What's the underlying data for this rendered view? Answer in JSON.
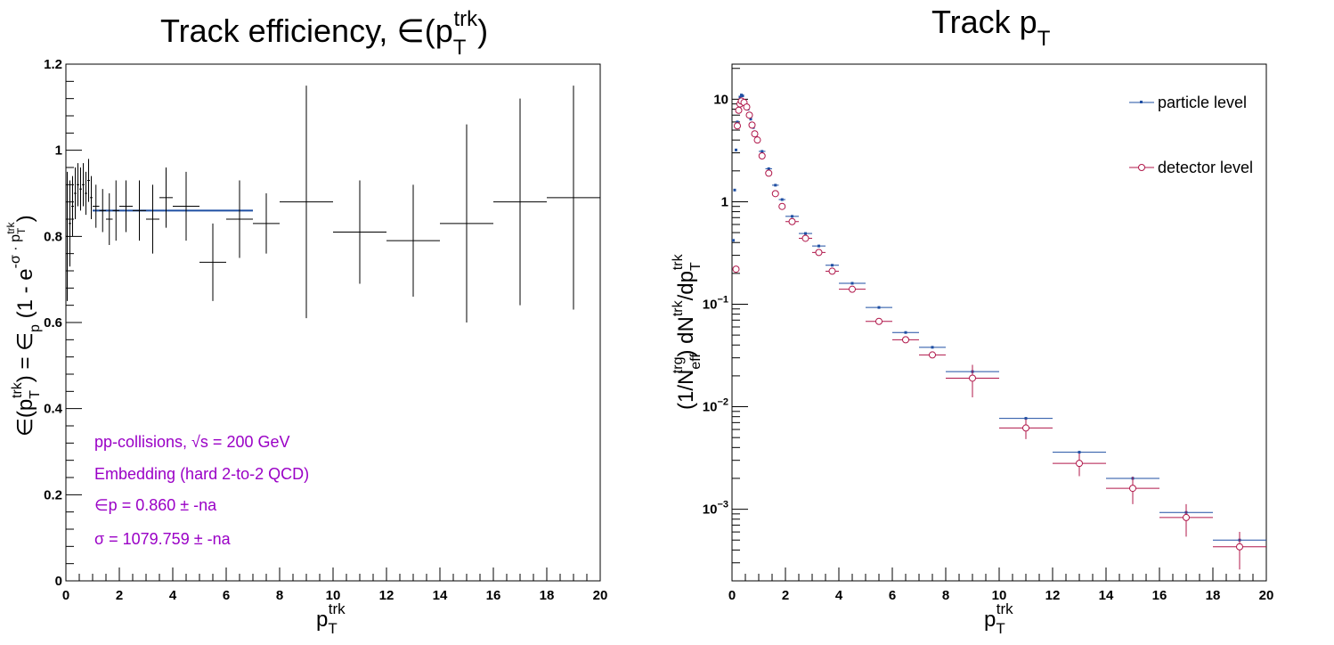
{
  "left_panel": {
    "title": "Track efficiency, ∈(p",
    "title_sub": "T",
    "title_sup": "trk",
    "title_close": ")",
    "xlabel_main": "p",
    "xlabel_sub": "T",
    "xlabel_sup": "trk",
    "ylabel": "∈(pTtrk) = ∈p (1 - e^(-σ · pTtrk))",
    "annotations": [
      "pp-collisions, √s = 200 GeV",
      "Embedding (hard 2-to-2 QCD)",
      "∈p = 0.860 ± -na",
      "σ = 1079.759 ± -na"
    ]
  },
  "right_panel": {
    "title": "Track p",
    "title_sub": "T",
    "xlabel_main": "p",
    "xlabel_sub": "T",
    "xlabel_sup": "trk",
    "ylabel": "(1/Nefftrg) dNtrk/dpTtrk",
    "legend": [
      "particle level",
      "detector level"
    ]
  },
  "colors": {
    "axis": "#000000",
    "efficiency_points": "#000000",
    "fit_line": "#1f4fa3",
    "annotation": "#9a00c6",
    "particle_level": "#1f4fa3",
    "detector_level": "#b0174a"
  },
  "chart_data": [
    {
      "type": "scatter",
      "title": "Track efficiency, ∈(pTtrk)",
      "xlabel": "pTtrk",
      "ylabel": "∈(pTtrk) = ∈p (1 - e^(-σ · pTtrk))",
      "xlim": [
        0,
        20
      ],
      "ylim": [
        0,
        1.2
      ],
      "xticks": [
        0,
        2,
        4,
        6,
        8,
        10,
        12,
        14,
        16,
        18,
        20
      ],
      "yticks": [
        0,
        0.2,
        0.4,
        0.6,
        0.8,
        1,
        1.2
      ],
      "grid": false,
      "series": [
        {
          "points": [
            {
              "x": 0.05,
              "y": 0.8,
              "xerr": 0.05,
              "yerr": 0.15
            },
            {
              "x": 0.15,
              "y": 0.83,
              "xerr": 0.05,
              "yerr": 0.1
            },
            {
              "x": 0.25,
              "y": 0.87,
              "xerr": 0.05,
              "yerr": 0.07
            },
            {
              "x": 0.35,
              "y": 0.9,
              "xerr": 0.05,
              "yerr": 0.06
            },
            {
              "x": 0.45,
              "y": 0.92,
              "xerr": 0.05,
              "yerr": 0.05
            },
            {
              "x": 0.55,
              "y": 0.91,
              "xerr": 0.05,
              "yerr": 0.05
            },
            {
              "x": 0.65,
              "y": 0.92,
              "xerr": 0.05,
              "yerr": 0.05
            },
            {
              "x": 0.75,
              "y": 0.9,
              "xerr": 0.05,
              "yerr": 0.05
            },
            {
              "x": 0.85,
              "y": 0.93,
              "xerr": 0.05,
              "yerr": 0.05
            },
            {
              "x": 0.95,
              "y": 0.89,
              "xerr": 0.05,
              "yerr": 0.05
            },
            {
              "x": 1.125,
              "y": 0.87,
              "xerr": 0.125,
              "yerr": 0.05
            },
            {
              "x": 1.375,
              "y": 0.86,
              "xerr": 0.125,
              "yerr": 0.05
            },
            {
              "x": 1.625,
              "y": 0.84,
              "xerr": 0.125,
              "yerr": 0.06
            },
            {
              "x": 1.875,
              "y": 0.86,
              "xerr": 0.125,
              "yerr": 0.07
            },
            {
              "x": 2.25,
              "y": 0.87,
              "xerr": 0.25,
              "yerr": 0.06
            },
            {
              "x": 2.75,
              "y": 0.86,
              "xerr": 0.25,
              "yerr": 0.07
            },
            {
              "x": 3.25,
              "y": 0.84,
              "xerr": 0.25,
              "yerr": 0.08
            },
            {
              "x": 3.75,
              "y": 0.89,
              "xerr": 0.25,
              "yerr": 0.07
            },
            {
              "x": 4.5,
              "y": 0.87,
              "xerr": 0.5,
              "yerr": 0.08
            },
            {
              "x": 5.5,
              "y": 0.74,
              "xerr": 0.5,
              "yerr": 0.09
            },
            {
              "x": 6.5,
              "y": 0.84,
              "xerr": 0.5,
              "yerr": 0.09
            },
            {
              "x": 7.5,
              "y": 0.83,
              "xerr": 0.5,
              "yerr": 0.07
            },
            {
              "x": 9.0,
              "y": 0.88,
              "xerr": 1.0,
              "yerr": 0.27
            },
            {
              "x": 11.0,
              "y": 0.81,
              "xerr": 1.0,
              "yerr": 0.12
            },
            {
              "x": 13.0,
              "y": 0.79,
              "xerr": 1.0,
              "yerr": 0.13
            },
            {
              "x": 15.0,
              "y": 0.83,
              "xerr": 1.0,
              "yerr": 0.23
            },
            {
              "x": 17.0,
              "y": 0.88,
              "xerr": 1.0,
              "yerr": 0.24
            },
            {
              "x": 19.0,
              "y": 0.89,
              "xerr": 1.0,
              "yerr": 0.26
            }
          ]
        }
      ],
      "fit": {
        "x_range": [
          1,
          7
        ],
        "y": 0.86
      }
    },
    {
      "type": "scatter",
      "title": "Track pT",
      "xlabel": "pTtrk",
      "ylabel": "(1/Nefftrg) dNtrk/dpTtrk",
      "xlim": [
        0,
        20
      ],
      "ylim": [
        0.0002,
        22
      ],
      "yscale": "log",
      "xticks": [
        0,
        2,
        4,
        6,
        8,
        10,
        12,
        14,
        16,
        18,
        20
      ],
      "yticks": [
        0.001,
        0.01,
        0.1,
        1,
        10
      ],
      "ytick_labels": [
        "10^-3",
        "10^-2",
        "10^-1",
        "1",
        "10"
      ],
      "grid": false,
      "legend_position": "top-right",
      "series": [
        {
          "name": "particle level",
          "marker": "dot",
          "points": [
            {
              "x": 0.05,
              "y": 0.42,
              "xerr": 0.05
            },
            {
              "x": 0.1,
              "y": 1.3,
              "xerr": 0.05
            },
            {
              "x": 0.15,
              "y": 3.2,
              "xerr": 0.05
            },
            {
              "x": 0.2,
              "y": 6.0,
              "xerr": 0.05
            },
            {
              "x": 0.25,
              "y": 9.0,
              "xerr": 0.05
            },
            {
              "x": 0.3,
              "y": 10.5,
              "xerr": 0.05
            },
            {
              "x": 0.35,
              "y": 11.0,
              "xerr": 0.05
            },
            {
              "x": 0.4,
              "y": 10.8,
              "xerr": 0.05
            },
            {
              "x": 0.5,
              "y": 9.6,
              "xerr": 0.05
            },
            {
              "x": 0.6,
              "y": 8.0,
              "xerr": 0.05
            },
            {
              "x": 0.7,
              "y": 6.4,
              "xerr": 0.05
            },
            {
              "x": 0.8,
              "y": 5.3,
              "xerr": 0.05
            },
            {
              "x": 0.9,
              "y": 4.4,
              "xerr": 0.05
            },
            {
              "x": 1.125,
              "y": 3.1,
              "xerr": 0.125
            },
            {
              "x": 1.375,
              "y": 2.1,
              "xerr": 0.125
            },
            {
              "x": 1.625,
              "y": 1.45,
              "xerr": 0.125
            },
            {
              "x": 1.875,
              "y": 1.05,
              "xerr": 0.125
            },
            {
              "x": 2.25,
              "y": 0.72,
              "xerr": 0.25
            },
            {
              "x": 2.75,
              "y": 0.49,
              "xerr": 0.25
            },
            {
              "x": 3.25,
              "y": 0.37,
              "xerr": 0.25
            },
            {
              "x": 3.75,
              "y": 0.24,
              "xerr": 0.25
            },
            {
              "x": 4.5,
              "y": 0.16,
              "xerr": 0.5
            },
            {
              "x": 5.5,
              "y": 0.093,
              "xerr": 0.5
            },
            {
              "x": 6.5,
              "y": 0.053,
              "xerr": 0.5
            },
            {
              "x": 7.5,
              "y": 0.038,
              "xerr": 0.5
            },
            {
              "x": 9.0,
              "y": 0.022,
              "xerr": 1.0
            },
            {
              "x": 11.0,
              "y": 0.0077,
              "xerr": 1.0
            },
            {
              "x": 13.0,
              "y": 0.0036,
              "xerr": 1.0
            },
            {
              "x": 15.0,
              "y": 0.002,
              "xerr": 1.0
            },
            {
              "x": 17.0,
              "y": 0.00093,
              "xerr": 1.0
            },
            {
              "x": 19.0,
              "y": 0.0005,
              "xerr": 1.0
            }
          ]
        },
        {
          "name": "detector level",
          "marker": "open-circle",
          "points": [
            {
              "x": 0.15,
              "y": 0.22,
              "xerr": 0.05
            },
            {
              "x": 0.2,
              "y": 5.5,
              "xerr": 0.05
            },
            {
              "x": 0.25,
              "y": 7.8,
              "xerr": 0.05
            },
            {
              "x": 0.3,
              "y": 9.0,
              "xerr": 0.05
            },
            {
              "x": 0.35,
              "y": 9.6,
              "xerr": 0.05
            },
            {
              "x": 0.45,
              "y": 9.3,
              "xerr": 0.05
            },
            {
              "x": 0.55,
              "y": 8.4,
              "xerr": 0.05
            },
            {
              "x": 0.65,
              "y": 7.0,
              "xerr": 0.05
            },
            {
              "x": 0.75,
              "y": 5.6,
              "xerr": 0.05
            },
            {
              "x": 0.85,
              "y": 4.6,
              "xerr": 0.05
            },
            {
              "x": 0.95,
              "y": 4.0,
              "xerr": 0.05
            },
            {
              "x": 1.125,
              "y": 2.8,
              "xerr": 0.125
            },
            {
              "x": 1.375,
              "y": 1.9,
              "xerr": 0.125
            },
            {
              "x": 1.625,
              "y": 1.2,
              "xerr": 0.125
            },
            {
              "x": 1.875,
              "y": 0.9,
              "xerr": 0.125
            },
            {
              "x": 2.25,
              "y": 0.64,
              "xerr": 0.25
            },
            {
              "x": 2.75,
              "y": 0.44,
              "xerr": 0.25
            },
            {
              "x": 3.25,
              "y": 0.32,
              "xerr": 0.25
            },
            {
              "x": 3.75,
              "y": 0.21,
              "xerr": 0.25
            },
            {
              "x": 4.5,
              "y": 0.14,
              "xerr": 0.5
            },
            {
              "x": 5.5,
              "y": 0.068,
              "xerr": 0.5
            },
            {
              "x": 6.5,
              "y": 0.045,
              "xerr": 0.5
            },
            {
              "x": 7.5,
              "y": 0.032,
              "xerr": 0.5
            },
            {
              "x": 9.0,
              "y": 0.019,
              "xerr": 1.0,
              "yerr_rel": 0.35
            },
            {
              "x": 11.0,
              "y": 0.0062,
              "xerr": 1.0,
              "yerr_rel": 0.22
            },
            {
              "x": 13.0,
              "y": 0.0028,
              "xerr": 1.0,
              "yerr_rel": 0.25
            },
            {
              "x": 15.0,
              "y": 0.0016,
              "xerr": 1.0,
              "yerr_rel": 0.3
            },
            {
              "x": 17.0,
              "y": 0.00083,
              "xerr": 1.0,
              "yerr_rel": 0.35
            },
            {
              "x": 19.0,
              "y": 0.00043,
              "xerr": 1.0,
              "yerr_rel": 0.4
            }
          ]
        }
      ]
    }
  ]
}
